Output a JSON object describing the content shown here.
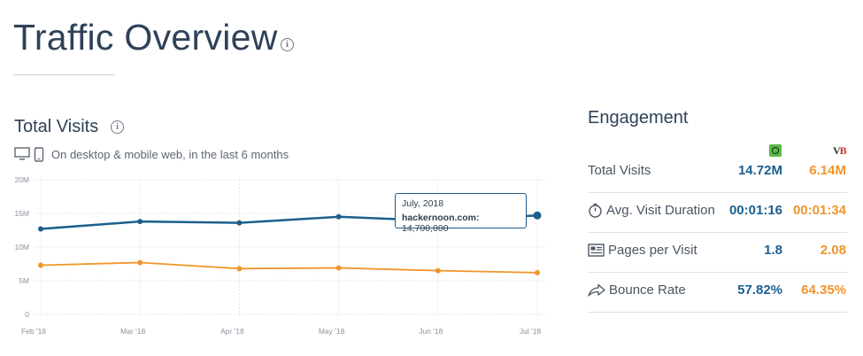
{
  "page": {
    "title": "Traffic Overview"
  },
  "total_visits": {
    "title": "Total Visits",
    "devices_text": "On desktop & mobile web, in the last 6 months"
  },
  "tooltip": {
    "date": "July, 2018",
    "site": "hackernoon.com:",
    "value": "14,700,000"
  },
  "colors": {
    "primary": "#1b5f8e",
    "secondary": "#f0952a"
  },
  "chart_data": {
    "type": "line",
    "categories": [
      "Feb '18",
      "Mar '18",
      "Apr '18",
      "May '18",
      "Jun '18",
      "Jul '18"
    ],
    "y_ticks": [
      "20M",
      "15M",
      "10M",
      "5M",
      "0"
    ],
    "ylim": [
      0,
      20000000
    ],
    "grid": true,
    "series": [
      {
        "color": "#1b5f8e",
        "values": [
          12700000,
          13800000,
          13600000,
          14500000,
          13900000,
          14700000
        ]
      },
      {
        "color": "#f0952a",
        "values": [
          7300000,
          7700000,
          6800000,
          6900000,
          6500000,
          6200000
        ]
      }
    ]
  },
  "engagement": {
    "title": "Engagement",
    "rows": [
      {
        "label": "Total Visits",
        "icon": "none",
        "v1": "14.72M",
        "v2": "6.14M"
      },
      {
        "label": "Avg. Visit Duration",
        "icon": "stopwatch-icon",
        "v1": "00:01:16",
        "v2": "00:01:34"
      },
      {
        "label": "Pages per Visit",
        "icon": "pages-icon",
        "v1": "1.8",
        "v2": "2.08"
      },
      {
        "label": "Bounce Rate",
        "icon": "bounce-icon",
        "v1": "57.82%",
        "v2": "64.35%"
      }
    ],
    "logo2_text": "V",
    "logo2_accent": "B"
  }
}
